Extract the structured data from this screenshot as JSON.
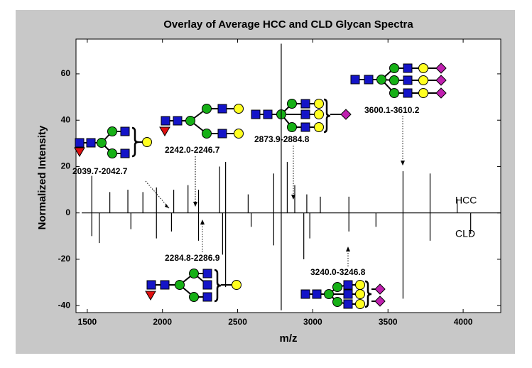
{
  "chart_data": {
    "type": "stem",
    "title": "Overlay of Average HCC and CLD Glycan Spectra",
    "x_label": "m/z",
    "y_label": "Normalized Intensity",
    "xlim": [
      1425,
      4250
    ],
    "ylim": [
      -43,
      75
    ],
    "xticks": [
      1500,
      2000,
      2500,
      3000,
      3500,
      4000
    ],
    "yticks": [
      -40,
      -20,
      0,
      20,
      40,
      60
    ],
    "grid": false,
    "series": [
      {
        "name": "HCC",
        "color": "#000000",
        "x": [
          1530,
          1650,
          1770,
          1870,
          1960,
          2075,
          2170,
          2240,
          2380,
          2420,
          2570,
          2740,
          2790,
          2830,
          2880,
          2960,
          3050,
          3240,
          3600,
          3780,
          3960
        ],
        "values": [
          16,
          9,
          10,
          9,
          11,
          10,
          12,
          10,
          20,
          22,
          8,
          17,
          73,
          22,
          12,
          8,
          7,
          7,
          18,
          17,
          6
        ]
      },
      {
        "name": "CLD",
        "color": "#000000",
        "x": [
          1530,
          1580,
          1790,
          1960,
          2060,
          2240,
          2400,
          2420,
          2590,
          2740,
          2790,
          2940,
          2980,
          3240,
          3420,
          3600,
          3780,
          4050
        ],
        "values": [
          -10,
          -13,
          -7,
          -11,
          -8,
          -12,
          -18,
          -32,
          -6,
          -14,
          -42,
          -20,
          -11,
          -8,
          -6,
          -37,
          -12,
          -9
        ]
      }
    ],
    "annotations": [
      "2039.7-2042.7",
      "2242.0-2246.7",
      "2873.9-2884.8",
      "3600.1-3610.2",
      "2284.8-2286.9",
      "3240.0-3246.8"
    ]
  }
}
